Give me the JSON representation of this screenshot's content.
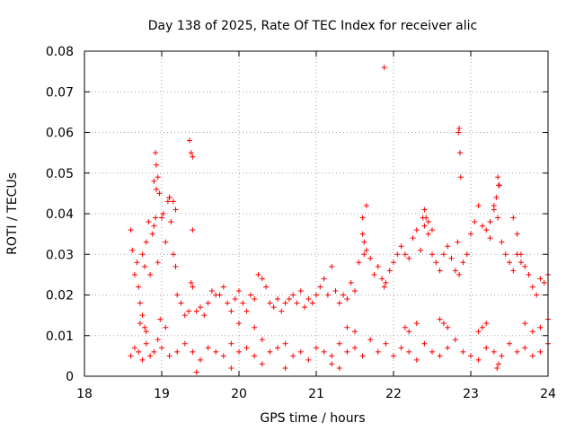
{
  "chart_data": {
    "type": "scatter",
    "title": "Day 138 of 2025, Rate Of TEC Index for receiver alic",
    "xlabel": "GPS time / hours",
    "ylabel": "ROTI / TECUs",
    "xlim": [
      18,
      24
    ],
    "ylim": [
      0,
      0.08
    ],
    "grid": true,
    "marker": "+",
    "marker_color": "#ff0000",
    "xticks": [
      18,
      19,
      20,
      21,
      22,
      23,
      24
    ],
    "xtick_labels": [
      "18",
      "19",
      "20",
      "21",
      "22",
      "23",
      "24"
    ],
    "yticks": [
      0,
      0.01,
      0.02,
      0.03,
      0.04,
      0.05,
      0.06,
      0.07,
      0.08
    ],
    "ytick_labels": [
      "0",
      "0.01",
      "0.02",
      "0.03",
      "0.04",
      "0.05",
      "0.06",
      "0.07",
      "0.08"
    ],
    "series": [
      {
        "name": "ROTI",
        "x": [
          18.6,
          18.62,
          18.65,
          18.68,
          18.7,
          18.72,
          18.75,
          18.78,
          18.8,
          18.83,
          18.85,
          18.88,
          18.9,
          18.92,
          18.95,
          18.97,
          19.0,
          19.02,
          19.05,
          19.08,
          19.1,
          19.12,
          19.15,
          19.18,
          19.2,
          19.25,
          19.3,
          19.35,
          19.38,
          19.4,
          19.45,
          19.5,
          19.55,
          19.6,
          19.65,
          19.7,
          19.75,
          19.8,
          19.85,
          19.9,
          19.95,
          20.0,
          20.05,
          20.1,
          20.15,
          20.2,
          20.25,
          20.3,
          20.35,
          20.4,
          20.45,
          20.5,
          20.55,
          20.6,
          20.65,
          20.7,
          20.75,
          20.8,
          20.85,
          20.9,
          20.95,
          21.0,
          21.05,
          21.1,
          21.15,
          21.2,
          21.25,
          21.3,
          21.35,
          21.4,
          21.45,
          21.5,
          21.55,
          21.6,
          21.62,
          21.65,
          21.7,
          21.75,
          21.8,
          21.85,
          21.88,
          21.9,
          21.95,
          22.0,
          22.05,
          22.1,
          22.15,
          22.2,
          22.25,
          22.3,
          22.35,
          22.4,
          22.42,
          22.45,
          22.5,
          22.55,
          22.6,
          22.65,
          22.7,
          22.75,
          22.8,
          22.83,
          22.85,
          22.9,
          22.95,
          23.0,
          23.05,
          23.1,
          23.15,
          23.2,
          23.25,
          23.3,
          23.33,
          23.35,
          23.4,
          23.45,
          23.5,
          23.55,
          23.6,
          23.65,
          23.7,
          23.75,
          23.8,
          23.85,
          23.9,
          23.95,
          24.0,
          18.6,
          18.65,
          18.7,
          18.75,
          18.8,
          18.85,
          18.9,
          18.95,
          19.0,
          19.1,
          19.2,
          19.3,
          19.4,
          19.5,
          19.6,
          19.7,
          19.8,
          19.9,
          20.0,
          20.1,
          20.2,
          20.3,
          20.4,
          20.5,
          20.6,
          20.7,
          20.8,
          20.9,
          21.0,
          21.1,
          21.2,
          21.3,
          21.4,
          21.5,
          21.6,
          21.7,
          21.8,
          21.9,
          22.0,
          22.1,
          22.2,
          22.3,
          22.4,
          22.5,
          22.6,
          22.7,
          22.8,
          22.9,
          23.0,
          23.1,
          23.2,
          23.3,
          23.4,
          23.5,
          23.6,
          23.7,
          23.8,
          23.9,
          24.0,
          18.92,
          18.93,
          18.95,
          19.36,
          19.38,
          19.4,
          18.9,
          18.93,
          19.15,
          19.18,
          19.1,
          19.4,
          21.65,
          21.6,
          21.62,
          22.4,
          22.45,
          22.5,
          22.38,
          22.85,
          22.84,
          22.86,
          22.87,
          23.35,
          23.37,
          23.36,
          23.3,
          23.25,
          23.55,
          23.6,
          23.65,
          21.88,
          23.34,
          23.36,
          19.45,
          21.2,
          21.3,
          20.3,
          19.9,
          20.6,
          18.75,
          18.78,
          18.8,
          18.72,
          19.05,
          18.98,
          22.3,
          22.2,
          22.15,
          22.6,
          22.7,
          22.65,
          23.1,
          23.15,
          23.2,
          23.7,
          23.8,
          23.9,
          24.0,
          21.4,
          21.5,
          20.0,
          20.2
        ],
        "y": [
          0.036,
          0.031,
          0.025,
          0.028,
          0.022,
          0.018,
          0.03,
          0.027,
          0.033,
          0.038,
          0.025,
          0.035,
          0.037,
          0.039,
          0.028,
          0.045,
          0.039,
          0.04,
          0.033,
          0.043,
          0.044,
          0.038,
          0.03,
          0.027,
          0.02,
          0.018,
          0.015,
          0.016,
          0.023,
          0.022,
          0.016,
          0.017,
          0.015,
          0.018,
          0.021,
          0.02,
          0.02,
          0.022,
          0.018,
          0.016,
          0.019,
          0.021,
          0.018,
          0.016,
          0.02,
          0.019,
          0.025,
          0.024,
          0.022,
          0.018,
          0.017,
          0.019,
          0.016,
          0.018,
          0.019,
          0.02,
          0.018,
          0.021,
          0.017,
          0.019,
          0.018,
          0.02,
          0.022,
          0.024,
          0.02,
          0.027,
          0.021,
          0.018,
          0.02,
          0.019,
          0.023,
          0.021,
          0.028,
          0.035,
          0.03,
          0.031,
          0.029,
          0.025,
          0.027,
          0.024,
          0.022,
          0.023,
          0.026,
          0.028,
          0.03,
          0.032,
          0.03,
          0.029,
          0.034,
          0.036,
          0.031,
          0.037,
          0.039,
          0.035,
          0.03,
          0.028,
          0.026,
          0.03,
          0.032,
          0.029,
          0.026,
          0.033,
          0.025,
          0.028,
          0.03,
          0.035,
          0.038,
          0.042,
          0.037,
          0.036,
          0.034,
          0.041,
          0.044,
          0.039,
          0.033,
          0.03,
          0.028,
          0.026,
          0.03,
          0.028,
          0.027,
          0.025,
          0.022,
          0.02,
          0.024,
          0.023,
          0.025,
          0.005,
          0.007,
          0.006,
          0.004,
          0.008,
          0.005,
          0.006,
          0.009,
          0.007,
          0.005,
          0.006,
          0.008,
          0.006,
          0.004,
          0.007,
          0.006,
          0.005,
          0.008,
          0.006,
          0.007,
          0.005,
          0.009,
          0.006,
          0.007,
          0.008,
          0.005,
          0.006,
          0.004,
          0.007,
          0.006,
          0.005,
          0.008,
          0.006,
          0.007,
          0.005,
          0.009,
          0.006,
          0.008,
          0.005,
          0.007,
          0.006,
          0.004,
          0.008,
          0.006,
          0.005,
          0.007,
          0.009,
          0.006,
          0.005,
          0.004,
          0.007,
          0.006,
          0.005,
          0.008,
          0.006,
          0.007,
          0.005,
          0.006,
          0.008,
          0.055,
          0.052,
          0.049,
          0.058,
          0.055,
          0.054,
          0.048,
          0.046,
          0.043,
          0.041,
          0.044,
          0.036,
          0.042,
          0.039,
          0.033,
          0.041,
          0.038,
          0.036,
          0.039,
          0.061,
          0.06,
          0.055,
          0.049,
          0.049,
          0.047,
          0.047,
          0.042,
          0.038,
          0.039,
          0.035,
          0.03,
          0.076,
          0.002,
          0.003,
          0.001,
          0.003,
          0.002,
          0.003,
          0.002,
          0.002,
          0.015,
          0.012,
          0.011,
          0.013,
          0.012,
          0.014,
          0.013,
          0.011,
          0.012,
          0.014,
          0.012,
          0.013,
          0.011,
          0.012,
          0.013,
          0.013,
          0.011,
          0.012,
          0.014,
          0.012,
          0.011,
          0.013,
          0.012
        ]
      }
    ]
  }
}
